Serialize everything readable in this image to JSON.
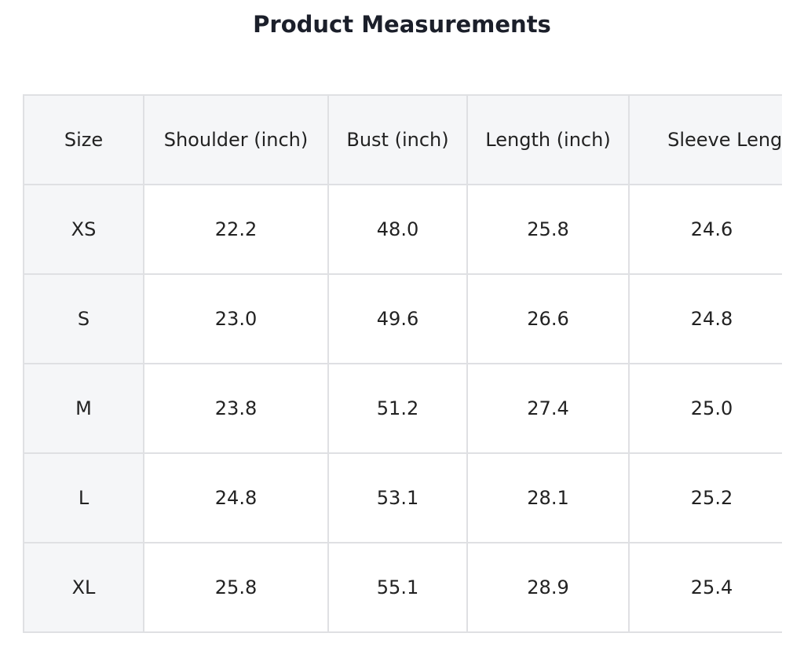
{
  "header": {
    "title": "Product Measurements"
  },
  "table": {
    "columns": [
      "Size",
      "Shoulder (inch)",
      "Bust (inch)",
      "Length (inch)",
      "Sleeve Length"
    ],
    "rows": [
      [
        "XS",
        "22.2",
        "48.0",
        "25.8",
        "24.6"
      ],
      [
        "S",
        "23.0",
        "49.6",
        "26.6",
        "24.8"
      ],
      [
        "M",
        "23.8",
        "51.2",
        "27.4",
        "25.0"
      ],
      [
        "L",
        "24.8",
        "53.1",
        "28.1",
        "25.2"
      ],
      [
        "XL",
        "25.8",
        "55.1",
        "28.9",
        "25.4"
      ]
    ]
  }
}
